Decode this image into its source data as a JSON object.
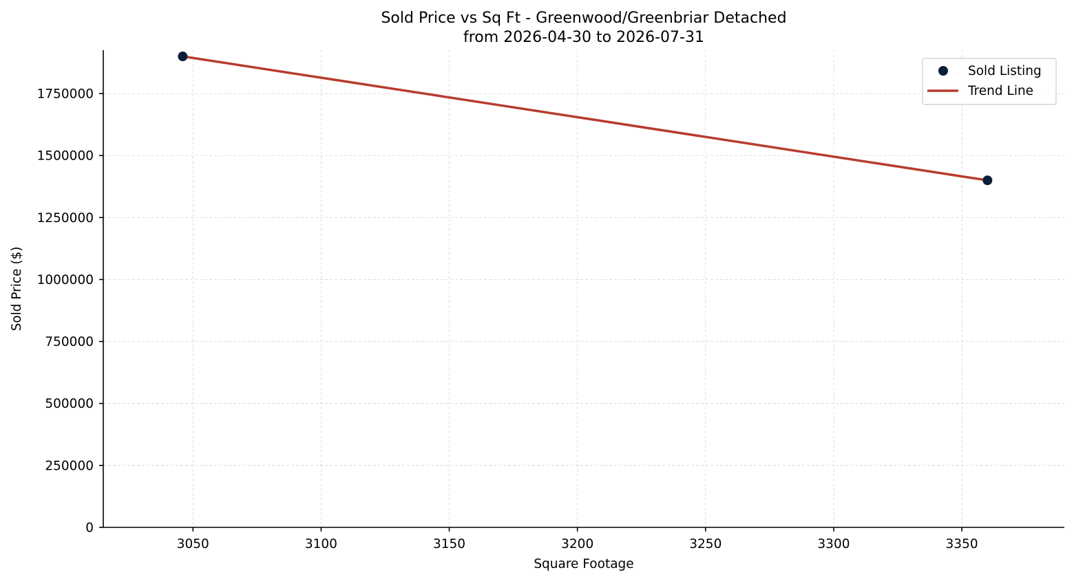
{
  "chart_data": {
    "type": "scatter",
    "title": "Sold Price vs Sq Ft - Greenwood/Greenbriar Detached",
    "subtitle": "from 2026-04-30 to 2026-07-31",
    "xlabel": "Square Footage",
    "ylabel": "Sold Price ($)",
    "xlim": [
      3015,
      3390
    ],
    "ylim": [
      0,
      1925000
    ],
    "xticks": [
      3050,
      3100,
      3150,
      3200,
      3250,
      3300,
      3350
    ],
    "xtick_labels": [
      "3050",
      "3100",
      "3150",
      "3200",
      "3250",
      "3300",
      "3350"
    ],
    "yticks": [
      0,
      250000,
      500000,
      750000,
      1000000,
      1250000,
      1500000,
      1750000
    ],
    "ytick_labels": [
      "0",
      "250000",
      "500000",
      "750000",
      "1000000",
      "1250000",
      "1500000",
      "1750000"
    ],
    "grid": true,
    "legend_position": "top-right",
    "series": [
      {
        "name": "Sold Listing",
        "kind": "scatter",
        "color": "#0b1f3a",
        "points": [
          {
            "x": 3046,
            "y": 1900000
          },
          {
            "x": 3360,
            "y": 1400000
          }
        ]
      },
      {
        "name": "Trend Line",
        "kind": "line",
        "color": "#b83c2e",
        "points": [
          {
            "x": 3046,
            "y": 1900000
          },
          {
            "x": 3360,
            "y": 1400000
          }
        ]
      }
    ]
  }
}
